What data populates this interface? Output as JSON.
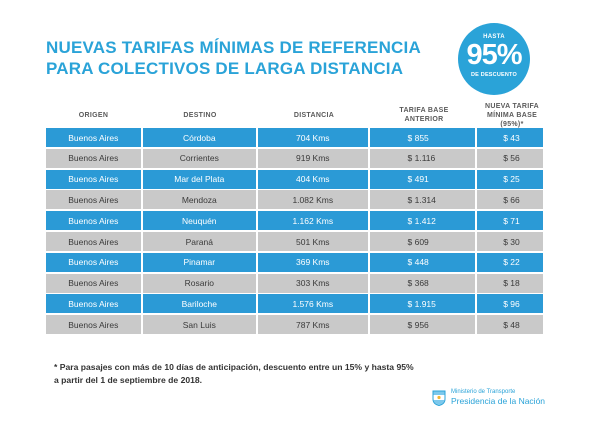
{
  "title": {
    "line1": "NUEVAS TARIFAS MÍNIMAS DE REFERENCIA",
    "line2": "PARA COLECTIVOS DE LARGA DISTANCIA"
  },
  "badge": {
    "top": "HASTA",
    "value": "95%",
    "bottom": "DE DESCUENTO"
  },
  "columns": [
    {
      "line1": "ORIGEN",
      "line2": ""
    },
    {
      "line1": "DESTINO",
      "line2": ""
    },
    {
      "line1": "DISTANCIA",
      "line2": ""
    },
    {
      "line1": "TARIFA BASE",
      "line2": "ANTERIOR"
    },
    {
      "line1": "NUEVA TARIFA",
      "line2": "MÍNIMA BASE (95%)*"
    }
  ],
  "rows": [
    [
      "Buenos Aires",
      "Córdoba",
      "704 Kms",
      "$ 855",
      "$ 43"
    ],
    [
      "Buenos Aires",
      "Corrientes",
      "919 Kms",
      "$ 1.116",
      "$ 56"
    ],
    [
      "Buenos Aires",
      "Mar del Plata",
      "404 Kms",
      "$ 491",
      "$ 25"
    ],
    [
      "Buenos Aires",
      "Mendoza",
      "1.082 Kms",
      "$ 1.314",
      "$ 66"
    ],
    [
      "Buenos Aires",
      "Neuquén",
      "1.162 Kms",
      "$ 1.412",
      "$ 71"
    ],
    [
      "Buenos Aires",
      "Paraná",
      "501 Kms",
      "$ 609",
      "$ 30"
    ],
    [
      "Buenos Aires",
      "Pinamar",
      "369 Kms",
      "$ 448",
      "$ 22"
    ],
    [
      "Buenos Aires",
      "Rosario",
      "303 Kms",
      "$ 368",
      "$ 18"
    ],
    [
      "Buenos Aires",
      "Bariloche",
      "1.576 Kms",
      "$ 1.915",
      "$ 96"
    ],
    [
      "Buenos Aires",
      "San Luis",
      "787 Kms",
      "$ 956",
      "$ 48"
    ]
  ],
  "footnote": {
    "line1": "* Para pasajes con más de 10 días de anticipación, descuento entre un 15% y hasta 95%",
    "line2": "a partir del 1 de septiembre de 2018."
  },
  "logo": {
    "ministry": "Ministerio de Transporte",
    "presidency": "Presidencia de la Nación",
    "icon": "argentina-shield-icon"
  },
  "colors": {
    "accent": "#2aa3d8",
    "row_blue": "#2b9ad6",
    "row_grey": "#c9c9c9"
  }
}
